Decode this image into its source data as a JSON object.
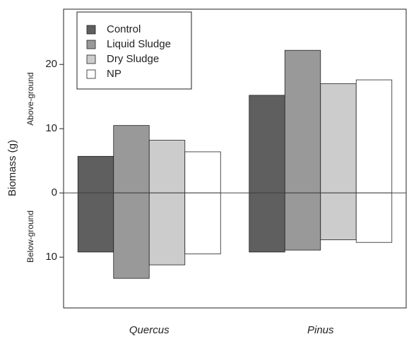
{
  "chart_data": {
    "type": "bar",
    "y_label": "Biomass (g)",
    "annotations": [
      "Above-ground",
      "Below-ground"
    ],
    "categories": [
      "Quercus",
      "Pinus"
    ],
    "series": [
      {
        "name": "Control",
        "color": "#5f5f5f",
        "values": [
          5.7,
          15.2
        ],
        "below_values": [
          -9.2,
          -9.2
        ]
      },
      {
        "name": "Liquid Sludge",
        "color": "#999999",
        "values": [
          10.5,
          22.2
        ],
        "below_values": [
          -13.3,
          -8.9
        ]
      },
      {
        "name": "Dry Sludge",
        "color": "#cccccc",
        "values": [
          8.2,
          17.0
        ],
        "below_values": [
          -11.2,
          -7.3
        ]
      },
      {
        "name": "NP",
        "color": "#ffffff",
        "values": [
          6.4,
          17.6
        ],
        "below_values": [
          -9.5,
          -7.7
        ]
      }
    ],
    "ylim": [
      -17.9,
      28.6
    ],
    "yticks": [
      {
        "value": -10,
        "label": "10"
      },
      0,
      10,
      20
    ],
    "legend": "top-left"
  }
}
